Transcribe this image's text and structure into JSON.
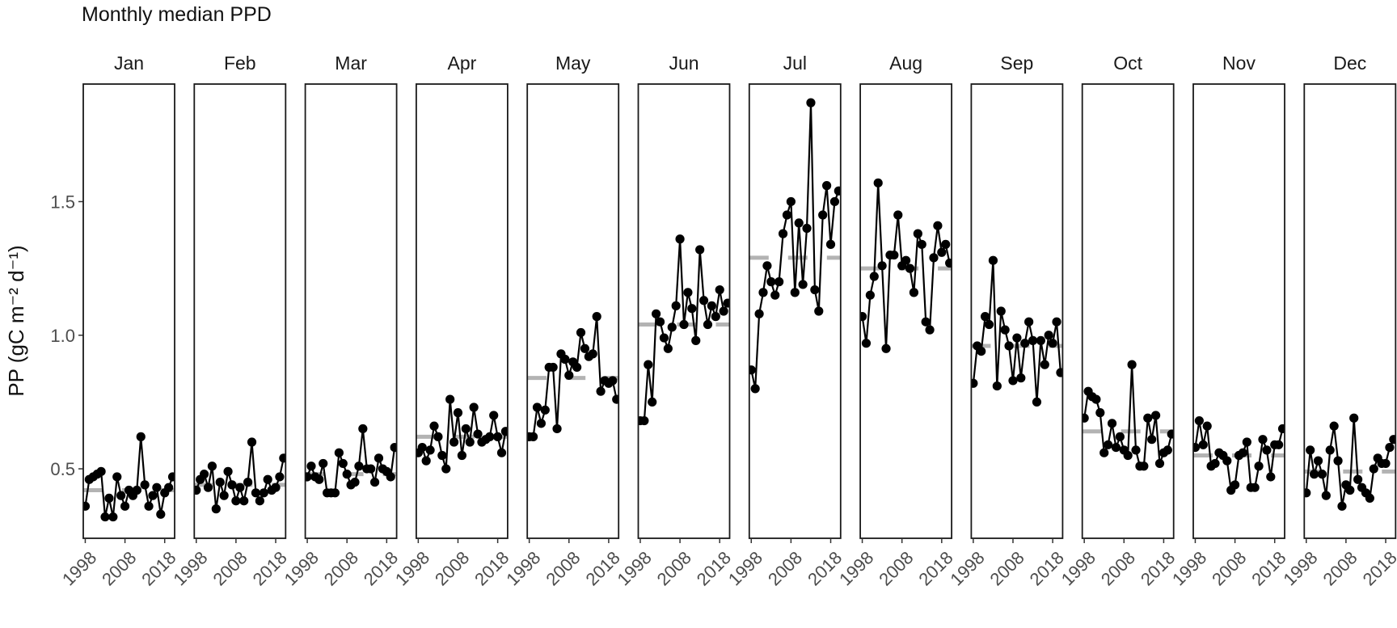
{
  "chart_data": {
    "type": "line",
    "title": "Monthly median PPD",
    "ylabel": "PP (gC m⁻² d⁻¹)",
    "xlabel": "",
    "ylim": [
      0.24,
      1.94
    ],
    "xlim": [
      1997.5,
      2020.5
    ],
    "yticks": [
      0.5,
      1.0,
      1.5
    ],
    "yticklabels": [
      "0.5",
      "1.0",
      "1.5"
    ],
    "xticks": [
      1998,
      2008,
      2018
    ],
    "xticklabels": [
      "1998",
      "2008",
      "2018"
    ],
    "grid": false,
    "facets": [
      {
        "label": "Jan",
        "climatology": 0.42,
        "values": [
          0.36,
          0.46,
          0.47,
          0.48,
          0.49,
          0.32,
          0.39,
          0.32,
          0.47,
          0.4,
          0.36,
          0.42,
          0.4,
          0.42,
          0.62,
          0.44,
          0.36,
          0.4,
          0.43,
          0.33,
          0.41,
          0.43,
          0.47
        ]
      },
      {
        "label": "Feb",
        "climatology": 0.44,
        "values": [
          0.42,
          0.46,
          0.48,
          0.43,
          0.51,
          0.35,
          0.45,
          0.4,
          0.49,
          0.44,
          0.38,
          0.43,
          0.38,
          0.45,
          0.6,
          0.41,
          0.38,
          0.41,
          0.46,
          0.42,
          0.43,
          0.47,
          0.54
        ]
      },
      {
        "label": "Mar",
        "climatology": 0.48,
        "values": [
          0.47,
          0.51,
          0.47,
          0.46,
          0.52,
          0.41,
          0.41,
          0.41,
          0.56,
          0.52,
          0.48,
          0.44,
          0.45,
          0.51,
          0.65,
          0.5,
          0.5,
          0.45,
          0.54,
          0.5,
          0.49,
          0.47,
          0.58
        ]
      },
      {
        "label": "Apr",
        "climatology": 0.62,
        "values": [
          0.56,
          0.58,
          0.53,
          0.57,
          0.66,
          0.62,
          0.55,
          0.5,
          0.76,
          0.6,
          0.71,
          0.55,
          0.65,
          0.6,
          0.73,
          0.63,
          0.6,
          0.61,
          0.62,
          0.7,
          0.62,
          0.56,
          0.64
        ]
      },
      {
        "label": "May",
        "climatology": 0.84,
        "values": [
          0.62,
          0.62,
          0.73,
          0.67,
          0.72,
          0.88,
          0.88,
          0.65,
          0.93,
          0.91,
          0.85,
          0.9,
          0.88,
          1.01,
          0.95,
          0.92,
          0.93,
          1.07,
          0.79,
          0.83,
          0.82,
          0.83,
          0.76
        ]
      },
      {
        "label": "Jun",
        "climatology": 1.04,
        "values": [
          0.68,
          0.68,
          0.89,
          0.75,
          1.08,
          1.05,
          0.99,
          0.95,
          1.03,
          1.11,
          1.36,
          1.04,
          1.16,
          1.1,
          0.98,
          1.32,
          1.13,
          1.04,
          1.11,
          1.07,
          1.17,
          1.09,
          1.12
        ]
      },
      {
        "label": "Jul",
        "climatology": 1.29,
        "values": [
          0.87,
          0.8,
          1.08,
          1.16,
          1.26,
          1.2,
          1.15,
          1.2,
          1.38,
          1.45,
          1.5,
          1.16,
          1.42,
          1.19,
          1.4,
          1.87,
          1.17,
          1.09,
          1.45,
          1.56,
          1.34,
          1.5,
          1.54
        ]
      },
      {
        "label": "Aug",
        "climatology": 1.25,
        "values": [
          1.07,
          0.97,
          1.15,
          1.22,
          1.57,
          1.26,
          0.95,
          1.3,
          1.3,
          1.45,
          1.26,
          1.28,
          1.25,
          1.16,
          1.38,
          1.34,
          1.05,
          1.02,
          1.29,
          1.41,
          1.31,
          1.34,
          1.27
        ]
      },
      {
        "label": "Sep",
        "climatology": 0.96,
        "values": [
          0.82,
          0.96,
          0.94,
          1.07,
          1.04,
          1.28,
          0.81,
          1.09,
          1.02,
          0.96,
          0.83,
          0.99,
          0.84,
          0.97,
          1.05,
          0.98,
          0.75,
          0.98,
          0.89,
          1.0,
          0.97,
          1.05,
          0.86
        ]
      },
      {
        "label": "Oct",
        "climatology": 0.64,
        "values": [
          0.69,
          0.79,
          0.77,
          0.76,
          0.71,
          0.56,
          0.59,
          0.67,
          0.58,
          0.62,
          0.57,
          0.55,
          0.89,
          0.57,
          0.51,
          0.51,
          0.69,
          0.61,
          0.7,
          0.52,
          0.56,
          0.57,
          0.63
        ]
      },
      {
        "label": "Nov",
        "climatology": 0.55,
        "values": [
          0.58,
          0.68,
          0.59,
          0.66,
          0.51,
          0.52,
          0.56,
          0.55,
          0.53,
          0.42,
          0.44,
          0.55,
          0.56,
          0.6,
          0.43,
          0.43,
          0.51,
          0.61,
          0.57,
          0.47,
          0.59,
          0.59,
          0.65
        ]
      },
      {
        "label": "Dec",
        "climatology": 0.49,
        "values": [
          0.41,
          0.57,
          0.48,
          0.53,
          0.48,
          0.4,
          0.57,
          0.66,
          0.53,
          0.36,
          0.44,
          0.42,
          0.69,
          0.46,
          0.43,
          0.41,
          0.39,
          0.5,
          0.54,
          0.52,
          0.52,
          0.58,
          0.61
        ]
      }
    ],
    "colors": {
      "series": "#000000",
      "climatology": "#b3b3b3",
      "panel_border": "#1a1a1a"
    }
  }
}
